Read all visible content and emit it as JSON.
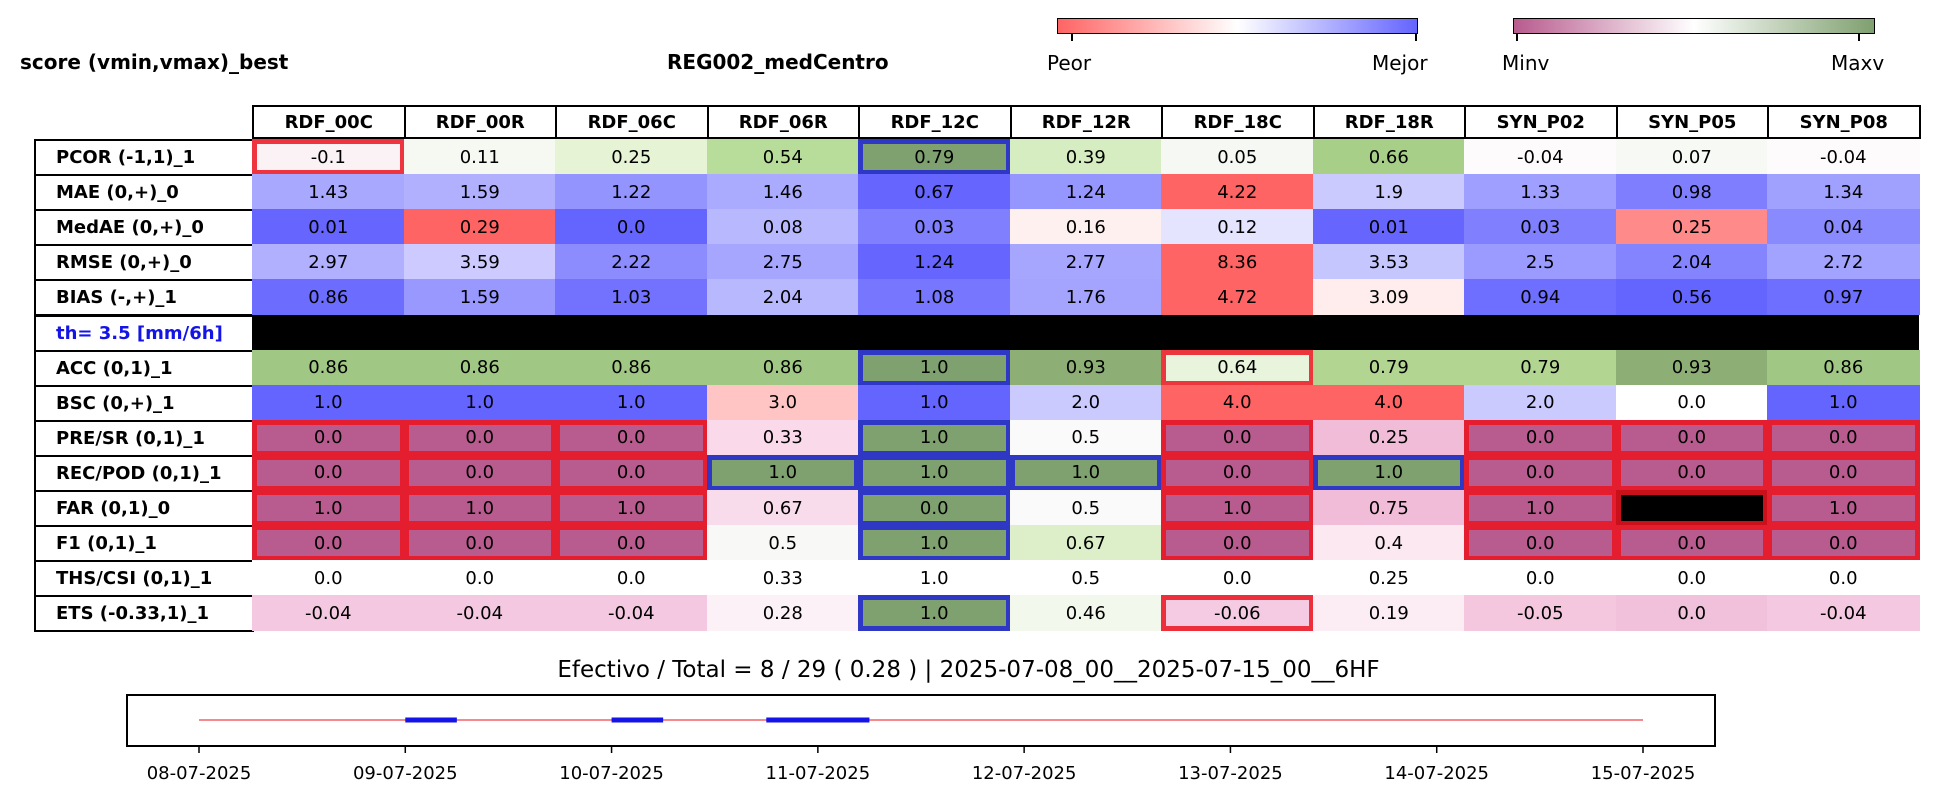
{
  "header": {
    "left_title": "score (vmin,vmax)_best",
    "center_title": "REG002_medCentro"
  },
  "colorbars": [
    {
      "name": "peor-mejor",
      "min_label": "Peor",
      "max_label": "Mejor",
      "colors": [
        "#ff6464",
        "#ffffff",
        "#6464ff"
      ]
    },
    {
      "name": "minv-maxv",
      "min_label": "Minv",
      "max_label": "Maxv",
      "colors": [
        "#b85b8e",
        "#ffffff",
        "#7fa06f"
      ]
    }
  ],
  "chart_data": {
    "type": "table",
    "columns": [
      "RDF_00C",
      "RDF_00R",
      "RDF_06C",
      "RDF_06R",
      "RDF_12C",
      "RDF_12R",
      "RDF_18C",
      "RDF_18R",
      "SYN_P02",
      "SYN_P05",
      "SYN_P08"
    ],
    "rows": [
      {
        "label": "PCOR (-1,1)_1",
        "values": [
          "-0.1",
          "0.11",
          "0.25",
          "0.54",
          "0.79",
          "0.39",
          "0.05",
          "0.66",
          "-0.04",
          "0.07",
          "-0.04"
        ],
        "colors": [
          "#fbf2f6",
          "#f5f9f1",
          "#e6f3d5",
          "#b8dc99",
          "#7fa06f",
          "#d6ecc1",
          "#f6f8f3",
          "#a8cf88",
          "#fdfbfc",
          "#f6f9f4",
          "#fdfbfc"
        ],
        "highlight": [
          "red",
          "",
          "",
          "",
          "blue",
          "",
          "",
          "",
          "",
          "",
          ""
        ]
      },
      {
        "label": "MAE (0,+)_0",
        "values": [
          "1.43",
          "1.59",
          "1.22",
          "1.46",
          "0.67",
          "1.24",
          "4.22",
          "1.9",
          "1.33",
          "0.98",
          "1.34"
        ],
        "colors": [
          "#a8a8ff",
          "#b0b0ff",
          "#9494ff",
          "#aaaaff",
          "#6666ff",
          "#9696ff",
          "#ff6464",
          "#cacaff",
          "#9f9fff",
          "#7e7eff",
          "#a0a0ff"
        ],
        "highlight": [
          "",
          "",
          "",
          "",
          "",
          "",
          "",
          "",
          "",
          "",
          ""
        ]
      },
      {
        "label": "MedAE (0,+)_0",
        "values": [
          "0.01",
          "0.29",
          "0.0",
          "0.08",
          "0.03",
          "0.16",
          "0.12",
          "0.01",
          "0.03",
          "0.25",
          "0.04"
        ],
        "colors": [
          "#6666ff",
          "#ff6464",
          "#6464ff",
          "#b8b8ff",
          "#8080ff",
          "#fff0f0",
          "#e4e4ff",
          "#6666ff",
          "#8080ff",
          "#ff8a8a",
          "#8a8aff"
        ],
        "highlight": [
          "",
          "",
          "",
          "",
          "",
          "",
          "",
          "",
          "",
          "",
          ""
        ]
      },
      {
        "label": "RMSE (0,+)_0",
        "values": [
          "2.97",
          "3.59",
          "2.22",
          "2.75",
          "1.24",
          "2.77",
          "8.36",
          "3.53",
          "2.5",
          "2.04",
          "2.72"
        ],
        "colors": [
          "#b0b0ff",
          "#cccaff",
          "#8c8cff",
          "#a6a6ff",
          "#6666ff",
          "#a6a6ff",
          "#ff6464",
          "#c6c6ff",
          "#9a9aff",
          "#8484ff",
          "#a2a2ff"
        ],
        "highlight": [
          "",
          "",
          "",
          "",
          "",
          "",
          "",
          "",
          "",
          "",
          ""
        ]
      },
      {
        "label": "BIAS (-,+)_1",
        "values": [
          "0.86",
          "1.59",
          "1.03",
          "2.04",
          "1.08",
          "1.76",
          "4.72",
          "3.09",
          "0.94",
          "0.56",
          "0.97"
        ],
        "colors": [
          "#6c6cff",
          "#9898ff",
          "#7272ff",
          "#b8b8ff",
          "#7676ff",
          "#a4a4ff",
          "#ff6464",
          "#ffecec",
          "#6e6eff",
          "#6464ff",
          "#6e6eff"
        ],
        "highlight": [
          "",
          "",
          "",
          "",
          "",
          "",
          "",
          "",
          "",
          "",
          ""
        ]
      },
      {
        "label": "th= 3.5 [mm/6h]",
        "threshold": true
      },
      {
        "label": "ACC (0,1)_1",
        "values": [
          "0.86",
          "0.86",
          "0.86",
          "0.86",
          "1.0",
          "0.93",
          "0.64",
          "0.79",
          "0.79",
          "0.93",
          "0.86"
        ],
        "colors": [
          "#a0c784",
          "#a0c784",
          "#a0c784",
          "#a0c784",
          "#7fa06f",
          "#8daf76",
          "#e8f4dc",
          "#b2d592",
          "#b2d592",
          "#8daf76",
          "#a0c784"
        ],
        "highlight": [
          "",
          "",
          "",
          "",
          "blue",
          "",
          "red",
          "",
          "",
          "",
          ""
        ]
      },
      {
        "label": "BSC (0,+)_1",
        "values": [
          "1.0",
          "1.0",
          "1.0",
          "3.0",
          "1.0",
          "2.0",
          "4.0",
          "4.0",
          "2.0",
          "0.0",
          "1.0"
        ],
        "colors": [
          "#6464ff",
          "#6464ff",
          "#6464ff",
          "#ffc4c4",
          "#6464ff",
          "#cacaff",
          "#ff6464",
          "#ff6464",
          "#cacaff",
          "#ffffff",
          "#6464ff"
        ],
        "highlight": [
          "",
          "",
          "",
          "",
          "",
          "",
          "",
          "",
          "",
          "",
          ""
        ]
      },
      {
        "label": "PRE/SR (0,1)_1",
        "values": [
          "0.0",
          "0.0",
          "0.0",
          "0.33",
          "1.0",
          "0.5",
          "0.0",
          "0.25",
          "0.0",
          "0.0",
          "0.0"
        ],
        "colors": [
          "#b85b8e",
          "#b85b8e",
          "#b85b8e",
          "#fad9ea",
          "#7fa06f",
          "#fbfafb",
          "#b85b8e",
          "#f1bcd8",
          "#b85b8e",
          "#b85b8e",
          "#b85b8e"
        ],
        "highlight": [
          "red",
          "red",
          "red",
          "",
          "blue",
          "",
          "red",
          "",
          "red",
          "red",
          "red"
        ]
      },
      {
        "label": "REC/POD (0,1)_1",
        "values": [
          "0.0",
          "0.0",
          "0.0",
          "1.0",
          "1.0",
          "1.0",
          "0.0",
          "1.0",
          "0.0",
          "0.0",
          "0.0"
        ],
        "colors": [
          "#b85b8e",
          "#b85b8e",
          "#b85b8e",
          "#7fa06f",
          "#7fa06f",
          "#7fa06f",
          "#b85b8e",
          "#7fa06f",
          "#b85b8e",
          "#b85b8e",
          "#b85b8e"
        ],
        "highlight": [
          "red",
          "red",
          "red",
          "blue",
          "blue",
          "blue",
          "red",
          "blue",
          "red",
          "red",
          "red"
        ]
      },
      {
        "label": "FAR (0,1)_0",
        "values": [
          "1.0",
          "1.0",
          "1.0",
          "0.67",
          "0.0",
          "0.5",
          "1.0",
          "0.75",
          "1.0",
          "",
          "1.0"
        ],
        "colors": [
          "#b85b8e",
          "#b85b8e",
          "#b85b8e",
          "#f9dcec",
          "#7fa06f",
          "#fbfafb",
          "#b85b8e",
          "#f1bcd8",
          "#b85b8e",
          "#000000",
          "#b85b8e"
        ],
        "highlight": [
          "red",
          "red",
          "red",
          "",
          "blue",
          "",
          "red",
          "",
          "red",
          "red",
          "red"
        ]
      },
      {
        "label": "F1 (0,1)_1",
        "values": [
          "0.0",
          "0.0",
          "0.0",
          "0.5",
          "1.0",
          "0.67",
          "0.0",
          "0.4",
          "0.0",
          "0.0",
          "0.0"
        ],
        "colors": [
          "#b85b8e",
          "#b85b8e",
          "#b85b8e",
          "#f8f8f6",
          "#7fa06f",
          "#dcefc8",
          "#b85b8e",
          "#fbe8f1",
          "#b85b8e",
          "#b85b8e",
          "#b85b8e"
        ],
        "highlight": [
          "red",
          "red",
          "red",
          "",
          "blue",
          "",
          "red",
          "",
          "red",
          "red",
          "red"
        ]
      },
      {
        "label": "THS/CSI (0,1)_1",
        "values": [
          "0.0",
          "0.0",
          "0.0",
          "0.33",
          "1.0",
          "0.5",
          "0.0",
          "0.25",
          "0.0",
          "0.0",
          "0.0"
        ],
        "colors": [
          "#ffffff",
          "#ffffff",
          "#ffffff",
          "#ffffff",
          "#ffffff",
          "#ffffff",
          "#ffffff",
          "#ffffff",
          "#ffffff",
          "#ffffff",
          "#ffffff"
        ],
        "highlight": [
          "",
          "",
          "",
          "",
          "",
          "",
          "",
          "",
          "",
          "",
          ""
        ]
      },
      {
        "label": "ETS (-0.33,1)_1",
        "values": [
          "-0.04",
          "-0.04",
          "-0.04",
          "0.28",
          "1.0",
          "0.46",
          "-0.06",
          "0.19",
          "-0.05",
          "0.0",
          "-0.04"
        ],
        "colors": [
          "#f4c8e0",
          "#f4c8e0",
          "#f4c8e0",
          "#fcf1f6",
          "#7fa06f",
          "#f2f8eb",
          "#f4cbe2",
          "#fcedf4",
          "#f4c7df",
          "#f1c1dc",
          "#f4c8e0"
        ],
        "highlight": [
          "",
          "",
          "",
          "",
          "blue",
          "",
          "red",
          "",
          "",
          "",
          ""
        ]
      }
    ],
    "footer": "Efectivo / Total  =  8 / 29 ( 0.28 ) | 2025-07-08_00__2025-07-15_00__6HF",
    "timeline": {
      "type": "line",
      "x_tick_labels": [
        "08-07-2025",
        "09-07-2025",
        "10-07-2025",
        "11-07-2025",
        "12-07-2025",
        "13-07-2025",
        "14-07-2025",
        "15-07-2025"
      ],
      "x_range": [
        0,
        7
      ],
      "active_segments": [
        [
          1.0,
          1.25
        ],
        [
          2.0,
          2.25
        ],
        [
          2.75,
          3.25
        ]
      ],
      "line_color": "#e8131c",
      "active_color": "#1414e6"
    }
  }
}
